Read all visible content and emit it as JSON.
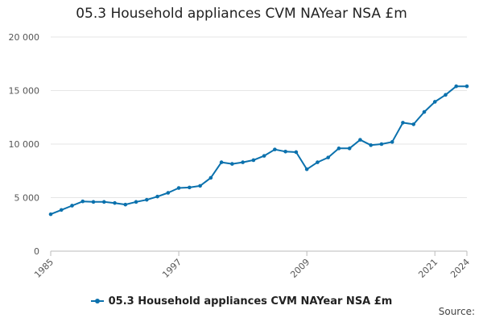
{
  "chart_data": {
    "type": "line",
    "title": "05.3 Household appliances CVM NAYear NSA £m",
    "xlabel": "",
    "ylabel": "",
    "x": [
      1985,
      1986,
      1987,
      1988,
      1989,
      1990,
      1991,
      1992,
      1993,
      1994,
      1995,
      1996,
      1997,
      1998,
      1999,
      2000,
      2001,
      2002,
      2003,
      2004,
      2005,
      2006,
      2007,
      2008,
      2009,
      2010,
      2011,
      2012,
      2013,
      2014,
      2015,
      2016,
      2017,
      2018,
      2019,
      2020,
      2021,
      2022,
      2023,
      2024
    ],
    "series": [
      {
        "name": "05.3 Household appliances CVM NAYear NSA £m",
        "color": "#0b71ad",
        "values": [
          3450,
          3850,
          4250,
          4650,
          4600,
          4600,
          4500,
          4350,
          4600,
          4800,
          5100,
          5450,
          5900,
          5950,
          6100,
          6850,
          8300,
          8150,
          8300,
          8500,
          8900,
          9500,
          9300,
          9250,
          7650,
          8300,
          8750,
          9600,
          9600,
          10400,
          9900,
          10000,
          10200,
          12000,
          11850,
          13000,
          13950,
          14600,
          15400,
          15400
        ]
      }
    ],
    "xlim": [
      1985,
      2024
    ],
    "ylim": [
      0,
      20000
    ],
    "x_tick_labels": [
      "1985",
      "1997",
      "2009",
      "2021",
      "2024"
    ],
    "y_tick_labels": [
      "0",
      "5 000",
      "10 000",
      "15 000",
      "20 000"
    ],
    "y_tick_values": [
      0,
      5000,
      10000,
      15000,
      20000
    ],
    "grid": "horizontal",
    "legend_position": "bottom"
  },
  "legend_label": "05.3 Household appliances CVM NAYear NSA £m",
  "source_label": "Source:"
}
